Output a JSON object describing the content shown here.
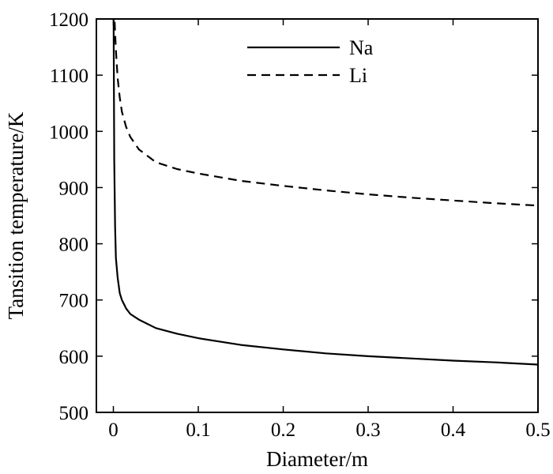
{
  "chart_data": {
    "type": "line",
    "xlabel": "Diameter/m",
    "ylabel": "Tansition temperature/K",
    "xlim": [
      -0.02,
      0.5
    ],
    "ylim": [
      500,
      1200
    ],
    "xticks": [
      0,
      0.1,
      0.2,
      0.3,
      0.4,
      0.5
    ],
    "xtick_labels": [
      "0",
      "0.1",
      "0.2",
      "0.3",
      "0.4",
      "0.5"
    ],
    "yticks": [
      500,
      600,
      700,
      800,
      900,
      1000,
      1100,
      1200
    ],
    "ytick_labels": [
      "500",
      "600",
      "700",
      "800",
      "900",
      "1000",
      "1100",
      "1200"
    ],
    "grid": false,
    "legend_position": "top-center",
    "series": [
      {
        "name": "Na",
        "line_style": "solid",
        "color": "#000000",
        "x": [
          0.0003,
          0.001,
          0.002,
          0.003,
          0.005,
          0.0075,
          0.01,
          0.015,
          0.02,
          0.03,
          0.05,
          0.075,
          0.1,
          0.15,
          0.2,
          0.25,
          0.3,
          0.35,
          0.4,
          0.45,
          0.5
        ],
        "y": [
          1200,
          950,
          830,
          775,
          740,
          712,
          700,
          685,
          675,
          665,
          650,
          640,
          632,
          620,
          612,
          605,
          600,
          596,
          592,
          589,
          585
        ]
      },
      {
        "name": "Li",
        "line_style": "dashed",
        "color": "#000000",
        "x": [
          0.0015,
          0.003,
          0.005,
          0.0075,
          0.01,
          0.015,
          0.02,
          0.03,
          0.05,
          0.075,
          0.1,
          0.15,
          0.2,
          0.25,
          0.3,
          0.35,
          0.4,
          0.45,
          0.5
        ],
        "y": [
          1195,
          1145,
          1095,
          1060,
          1035,
          1008,
          990,
          968,
          945,
          933,
          925,
          912,
          903,
          895,
          888,
          882,
          877,
          872,
          868
        ]
      }
    ]
  }
}
